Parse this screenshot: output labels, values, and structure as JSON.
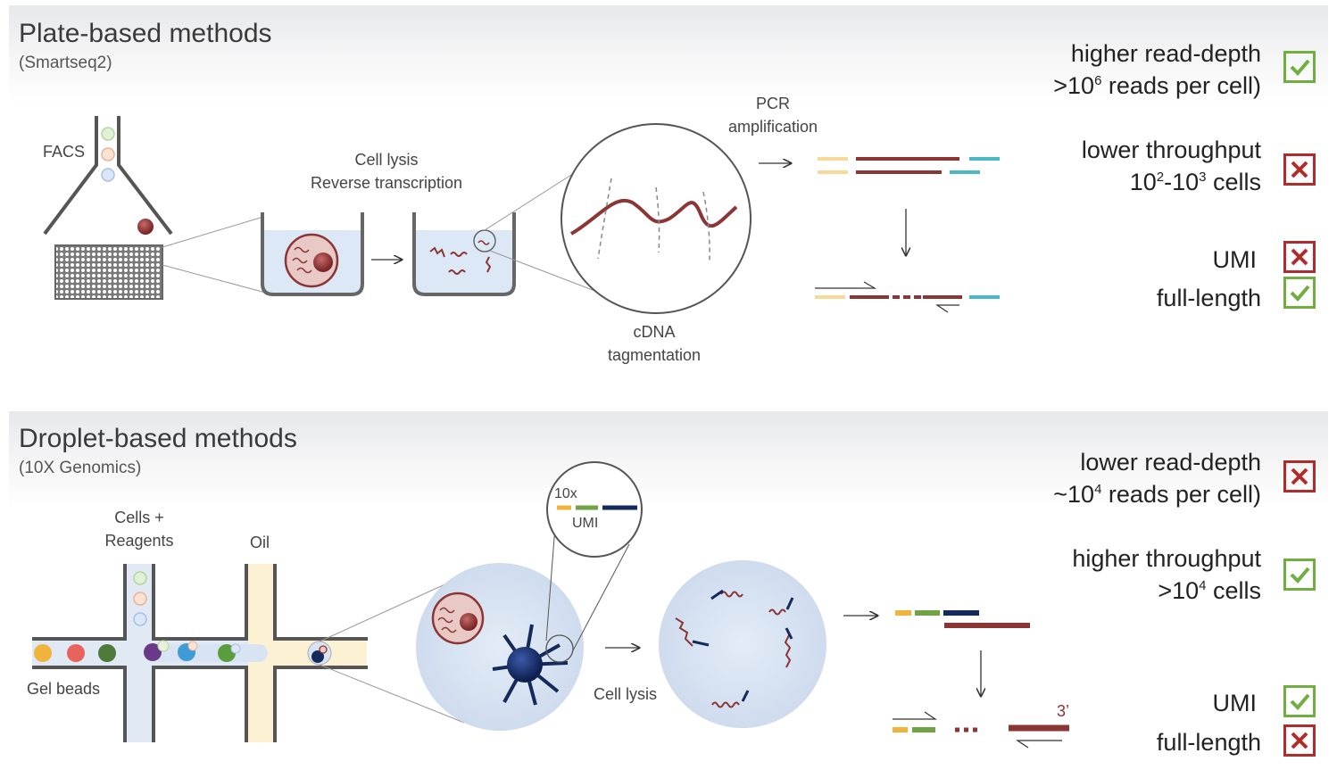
{
  "top": {
    "title": "Plate-based methods",
    "subtitle": "(Smartseq2)",
    "labels": {
      "facs": "FACS",
      "lysis_line1": "Cell lysis",
      "lysis_line2": "Reverse transcription",
      "pcr_line1": "PCR",
      "pcr_line2": "amplification",
      "cdna_line1": "cDNA",
      "cdna_line2": "tagmentation"
    },
    "features": {
      "readdepth_line1": "higher read-depth",
      "readdepth_pre": ">10",
      "readdepth_sup": "6",
      "readdepth_post": " reads per cell)",
      "throughput_line1": "lower throughput",
      "throughput_pre": "10",
      "throughput_sup1": "2",
      "throughput_mid": "-10",
      "throughput_sup2": "3",
      "throughput_post": " cells",
      "umi": "UMI",
      "fulllength": "full-length"
    }
  },
  "bottom": {
    "title": "Droplet-based methods",
    "subtitle": "(10X Genomics)",
    "labels": {
      "cells_line1": "Cells +",
      "cells_line2": "Reagents",
      "oil": "Oil",
      "gelbeads": "Gel beads",
      "celllysis": "Cell lysis",
      "tenx": "10x",
      "umi_inset": "UMI",
      "three_prime": "3’"
    },
    "features": {
      "readdepth_line1": "lower read-depth",
      "readdepth_pre": "~10",
      "readdepth_sup": "4",
      "readdepth_post": " reads per cell)",
      "throughput_line1": "higher throughput",
      "throughput_pre": ">10",
      "throughput_sup": "4",
      "throughput_post": " cells",
      "umi": "UMI",
      "fulllength": "full-length"
    }
  },
  "colors": {
    "ok": "#6fae3f",
    "no": "#b02c2c",
    "rna": "#8b3535",
    "adapter_yellow": "#f7d99a",
    "adapter_teal": "#4bb8c4",
    "barcode_yellow": "#f0b43c",
    "umi_green": "#6fa344",
    "polyt_navy": "#152a5c",
    "grey": "#5a5a5a"
  },
  "marks": {
    "top_readdepth": "check-icon",
    "top_throughput": "cross-icon",
    "top_umi": "cross-icon",
    "top_fulllength": "check-icon",
    "bottom_readdepth": "cross-icon",
    "bottom_throughput": "check-icon",
    "bottom_umi": "check-icon",
    "bottom_fulllength": "cross-icon"
  }
}
